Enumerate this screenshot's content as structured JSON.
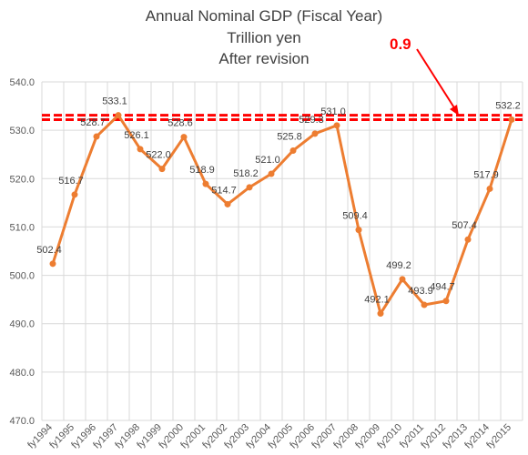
{
  "chart_data": {
    "type": "line",
    "title": "Annual Nominal GDP (Fiscal Year)",
    "subtitle_lines": [
      "Trillion yen",
      "After revision"
    ],
    "categories": [
      "fy1994",
      "fy1995",
      "fy1996",
      "fy1997",
      "fy1998",
      "fy1999",
      "fy2000",
      "fy2001",
      "fy2002",
      "fy2003",
      "fy2004",
      "fy2005",
      "fy2006",
      "fy2007",
      "fy2008",
      "fy2009",
      "fy2010",
      "fy2011",
      "fy2012",
      "fy2013",
      "fy2014",
      "fy2015"
    ],
    "series": [
      {
        "values": [
          502.4,
          516.7,
          528.7,
          533.1,
          526.1,
          522.0,
          528.6,
          518.9,
          514.7,
          518.2,
          521.0,
          525.8,
          529.3,
          531.0,
          509.4,
          492.1,
          499.2,
          493.9,
          494.7,
          507.4,
          517.9,
          532.2
        ],
        "labels": [
          "502.4",
          "516.7",
          "528.7",
          "533.1",
          "526.1",
          "522.0",
          "528.6",
          "518.9",
          "514.7",
          "518.2",
          "521.0",
          "525.8",
          "529.3",
          "531.0",
          "509.4",
          "492.1",
          "499.2",
          "493.9",
          "494.7",
          "507.4",
          "517.9",
          "532.2"
        ],
        "color": "#ED7D31"
      }
    ],
    "ylim": [
      470,
      540
    ],
    "yticks": [
      "470.0",
      "480.0",
      "490.0",
      "500.0",
      "510.0",
      "520.0",
      "530.0",
      "540.0"
    ],
    "grid": true,
    "reference_lines": [
      533.1,
      532.2
    ],
    "reference_color": "#FF0000",
    "annotation": {
      "text": "0.9",
      "color": "#FF0000"
    },
    "line_color": "#ED7D31"
  }
}
